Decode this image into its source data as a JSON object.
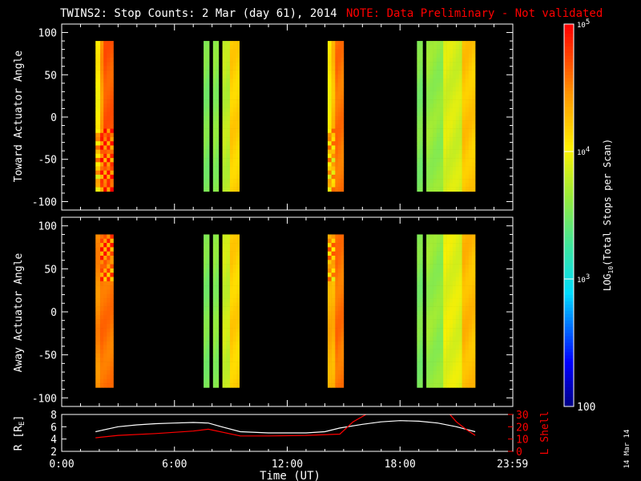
{
  "title": {
    "main": "TWINS2: Stop Counts:  2 Mar (day  61), 2014",
    "note": "NOTE: Data Preliminary - Not validated",
    "main_color": "#ffffff",
    "note_color": "#ff0000"
  },
  "stamp": "14 Mar 14",
  "chart_data": [
    {
      "type": "heatmap",
      "name": "toward",
      "ylabel": "Toward Actuator Angle",
      "ylim": [
        -110,
        110
      ],
      "yticks": [
        -100,
        -50,
        0,
        50,
        100
      ],
      "xlim": [
        0,
        24
      ],
      "x_unit": "hours UT",
      "angle_range": [
        -88,
        90
      ],
      "blocks": [
        {
          "x0": 1.8,
          "x1": 2.05,
          "value": 4.3,
          "pattern": "noisy"
        },
        {
          "x0": 2.05,
          "x1": 2.75,
          "value": 4.7,
          "pattern": "noisy"
        },
        {
          "x0": 7.55,
          "x1": 7.85,
          "value": 3.55
        },
        {
          "x0": 8.05,
          "x1": 8.35,
          "value": 3.6
        },
        {
          "x0": 8.55,
          "x1": 8.95,
          "value": 3.8
        },
        {
          "x0": 8.95,
          "x1": 9.45,
          "value": 4.2
        },
        {
          "x0": 14.15,
          "x1": 14.55,
          "value": 4.3,
          "pattern": "noisy"
        },
        {
          "x0": 14.55,
          "x1": 15.0,
          "value": 4.6
        },
        {
          "x0": 18.9,
          "x1": 19.2,
          "value": 3.55
        },
        {
          "x0": 19.4,
          "x1": 20.3,
          "value": 3.65
        },
        {
          "x0": 20.3,
          "x1": 21.3,
          "value": 3.9
        },
        {
          "x0": 21.3,
          "x1": 22.0,
          "value": 4.25
        }
      ]
    },
    {
      "type": "heatmap",
      "name": "away",
      "ylabel": "Away Actuator Angle",
      "ylim": [
        -110,
        110
      ],
      "yticks": [
        -100,
        -50,
        0,
        50,
        100
      ],
      "xlim": [
        0,
        24
      ],
      "x_unit": "hours UT",
      "angle_range": [
        -88,
        90
      ],
      "blocks": [
        {
          "x0": 1.8,
          "x1": 2.05,
          "value": 4.5
        },
        {
          "x0": 2.05,
          "x1": 2.75,
          "value": 4.6,
          "pattern": "noisy-top"
        },
        {
          "x0": 7.55,
          "x1": 7.85,
          "value": 3.55
        },
        {
          "x0": 8.05,
          "x1": 8.35,
          "value": 3.6
        },
        {
          "x0": 8.55,
          "x1": 8.95,
          "value": 3.85
        },
        {
          "x0": 8.95,
          "x1": 9.45,
          "value": 4.2
        },
        {
          "x0": 14.15,
          "x1": 14.55,
          "value": 4.35,
          "pattern": "noisy-top"
        },
        {
          "x0": 14.55,
          "x1": 15.0,
          "value": 4.6
        },
        {
          "x0": 18.9,
          "x1": 19.2,
          "value": 3.55
        },
        {
          "x0": 19.4,
          "x1": 20.3,
          "value": 3.65
        },
        {
          "x0": 20.3,
          "x1": 21.3,
          "value": 3.95
        },
        {
          "x0": 21.3,
          "x1": 22.0,
          "value": 4.3
        }
      ]
    },
    {
      "type": "line",
      "name": "orbit",
      "xlabel": "Time (UT)",
      "xticks": [
        0,
        6,
        12,
        18,
        23.983
      ],
      "xtick_labels": [
        "0:00",
        "6:00",
        "12:00",
        "18:00",
        "23:59"
      ],
      "xlim": [
        0,
        24
      ],
      "left_axis": {
        "label": "R [R_E]",
        "label_main": "R [R",
        "label_sub": "E",
        "label_close": "]",
        "ylim": [
          2,
          8
        ],
        "yticks": [
          2,
          4,
          6,
          8
        ],
        "color": "#ffffff"
      },
      "right_axis": {
        "label": "L Shell",
        "ylim": [
          0,
          30
        ],
        "yticks": [
          0,
          10,
          20,
          30
        ],
        "color": "#ff0000"
      },
      "series": [
        {
          "axis": "left",
          "color": "#ffffff",
          "x": [
            1.8,
            3,
            4,
            5,
            6,
            7,
            7.8,
            8.5,
            9.5,
            11,
            12,
            13,
            14,
            14.8,
            16,
            17,
            18,
            19,
            20,
            21,
            22
          ],
          "y": [
            5.2,
            6.0,
            6.3,
            6.5,
            6.6,
            6.7,
            6.6,
            6.0,
            5.2,
            5.0,
            5.0,
            5.0,
            5.2,
            5.8,
            6.4,
            6.8,
            7.0,
            6.9,
            6.6,
            6.0,
            5.2
          ]
        },
        {
          "axis": "right",
          "color": "#ff0000",
          "x": [
            1.8,
            3,
            5,
            7,
            7.8,
            9.5,
            11,
            13,
            14.8,
            15.5,
            16.3
          ],
          "y": [
            11,
            13,
            14.5,
            16.5,
            18,
            12.5,
            12.5,
            13,
            14,
            24,
            31
          ]
        },
        {
          "axis": "right",
          "color": "#ff0000",
          "x": [
            20.6,
            21,
            21.5,
            22
          ],
          "y": [
            31,
            24,
            18,
            13
          ]
        }
      ]
    }
  ],
  "colorbar": {
    "label_main": "LOG",
    "label_sub": "10",
    "label_rest": "(Total Stops per Scan)",
    "log_min": 2,
    "log_max": 5,
    "ticks": [
      {
        "log": 5,
        "base": "10",
        "exp": "5"
      },
      {
        "log": 4,
        "base": "10",
        "exp": "4"
      },
      {
        "log": 3,
        "base": "10",
        "exp": "3"
      },
      {
        "log": 2,
        "plain": "100"
      }
    ]
  }
}
